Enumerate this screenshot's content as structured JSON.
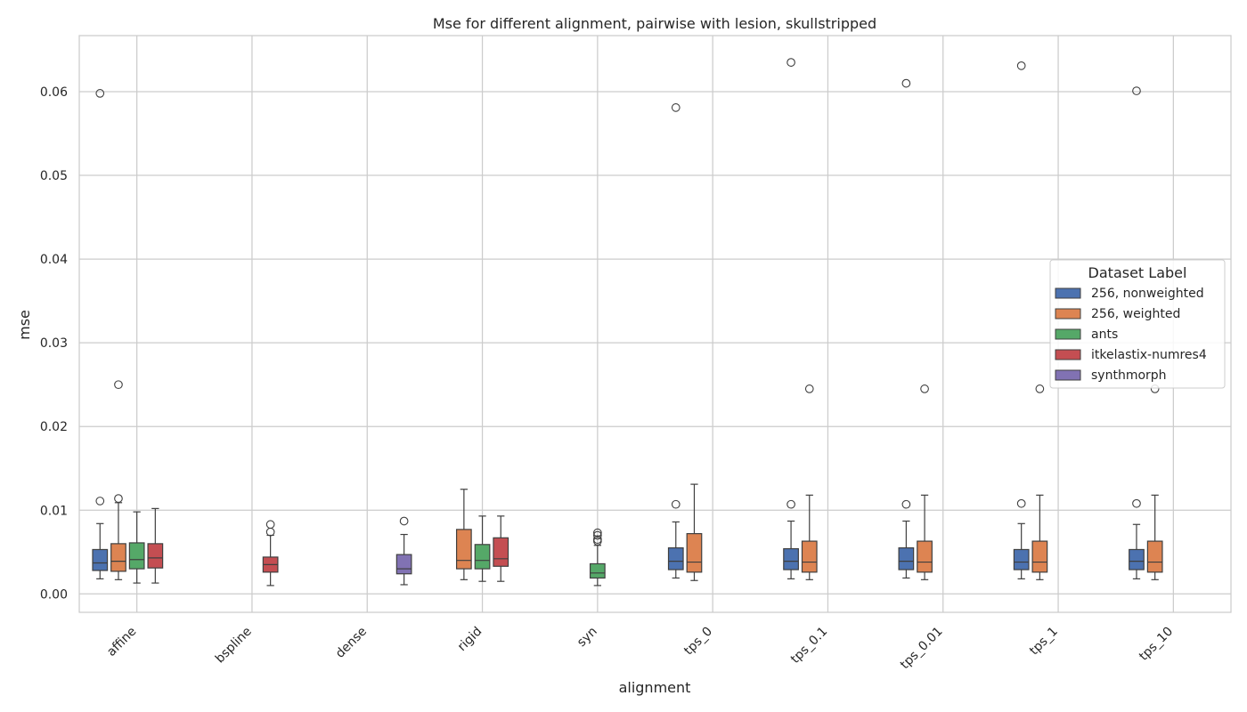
{
  "chart_data": {
    "type": "box",
    "title": "Mse for different alignment, pairwise with lesion, skullstripped",
    "xlabel": "alignment",
    "ylabel": "mse",
    "ylim": [
      -0.0022,
      0.0667
    ],
    "yticks": [
      "0.00",
      "0.01",
      "0.02",
      "0.03",
      "0.04",
      "0.05",
      "0.06"
    ],
    "categories": [
      "affine",
      "bspline",
      "dense",
      "rigid",
      "syn",
      "tps_0",
      "tps_0.1",
      "tps_0.01",
      "tps_1",
      "tps_10"
    ],
    "grid": true,
    "legend": {
      "title": "Dataset Label",
      "position": "right"
    },
    "series": [
      {
        "name": "256, nonweighted",
        "color": "#4c72b0",
        "boxes": [
          {
            "category": "affine",
            "whislo": 0.0018,
            "q1": 0.0028,
            "med": 0.0037,
            "q3": 0.0053,
            "whishi": 0.0084,
            "fliers": [
              0.0111,
              0.0598
            ]
          },
          {
            "category": "tps_0",
            "whislo": 0.0019,
            "q1": 0.0029,
            "med": 0.0039,
            "q3": 0.0055,
            "whishi": 0.0086,
            "fliers": [
              0.0107,
              0.0581
            ]
          },
          {
            "category": "tps_0.1",
            "whislo": 0.0018,
            "q1": 0.0029,
            "med": 0.0039,
            "q3": 0.0054,
            "whishi": 0.0087,
            "fliers": [
              0.0107,
              0.0635
            ]
          },
          {
            "category": "tps_0.01",
            "whislo": 0.0019,
            "q1": 0.0029,
            "med": 0.0039,
            "q3": 0.0055,
            "whishi": 0.0087,
            "fliers": [
              0.0107,
              0.061
            ]
          },
          {
            "category": "tps_1",
            "whislo": 0.0018,
            "q1": 0.0029,
            "med": 0.0038,
            "q3": 0.0053,
            "whishi": 0.0084,
            "fliers": [
              0.0108,
              0.0631
            ]
          },
          {
            "category": "tps_10",
            "whislo": 0.0018,
            "q1": 0.0029,
            "med": 0.0039,
            "q3": 0.0053,
            "whishi": 0.0083,
            "fliers": [
              0.0108,
              0.0601
            ]
          }
        ]
      },
      {
        "name": "256, weighted",
        "color": "#dd8452",
        "boxes": [
          {
            "category": "affine",
            "whislo": 0.0017,
            "q1": 0.0027,
            "med": 0.0039,
            "q3": 0.006,
            "whishi": 0.0109,
            "fliers": [
              0.0114,
              0.025
            ]
          },
          {
            "category": "rigid",
            "whislo": 0.0017,
            "q1": 0.003,
            "med": 0.004,
            "q3": 0.0077,
            "whishi": 0.0125,
            "fliers": []
          },
          {
            "category": "tps_0",
            "whislo": 0.0016,
            "q1": 0.0026,
            "med": 0.0038,
            "q3": 0.0072,
            "whishi": 0.0131,
            "fliers": []
          },
          {
            "category": "tps_0.1",
            "whislo": 0.0017,
            "q1": 0.0026,
            "med": 0.0038,
            "q3": 0.0063,
            "whishi": 0.0118,
            "fliers": [
              0.0245
            ]
          },
          {
            "category": "tps_0.01",
            "whislo": 0.0017,
            "q1": 0.0026,
            "med": 0.0038,
            "q3": 0.0063,
            "whishi": 0.0118,
            "fliers": [
              0.0245
            ]
          },
          {
            "category": "tps_1",
            "whislo": 0.0017,
            "q1": 0.0026,
            "med": 0.0038,
            "q3": 0.0063,
            "whishi": 0.0118,
            "fliers": [
              0.0245
            ]
          },
          {
            "category": "tps_10",
            "whislo": 0.0017,
            "q1": 0.0026,
            "med": 0.0038,
            "q3": 0.0063,
            "whishi": 0.0118,
            "fliers": [
              0.0245
            ]
          }
        ]
      },
      {
        "name": "ants",
        "color": "#55a868",
        "boxes": [
          {
            "category": "affine",
            "whislo": 0.0013,
            "q1": 0.003,
            "med": 0.0041,
            "q3": 0.0061,
            "whishi": 0.0098,
            "fliers": []
          },
          {
            "category": "rigid",
            "whislo": 0.0015,
            "q1": 0.003,
            "med": 0.004,
            "q3": 0.0059,
            "whishi": 0.0093,
            "fliers": []
          },
          {
            "category": "syn",
            "whislo": 0.001,
            "q1": 0.0019,
            "med": 0.0025,
            "q3": 0.0036,
            "whishi": 0.0058,
            "fliers": [
              0.0063,
              0.0065,
              0.007,
              0.0073
            ]
          }
        ]
      },
      {
        "name": "itkelastix-numres4",
        "color": "#c44e52",
        "boxes": [
          {
            "category": "affine",
            "whislo": 0.0013,
            "q1": 0.0031,
            "med": 0.0043,
            "q3": 0.006,
            "whishi": 0.0102,
            "fliers": []
          },
          {
            "category": "bspline",
            "whislo": 0.001,
            "q1": 0.0026,
            "med": 0.0035,
            "q3": 0.0044,
            "whishi": 0.007,
            "fliers": [
              0.0074,
              0.0083
            ]
          },
          {
            "category": "rigid",
            "whislo": 0.0015,
            "q1": 0.0033,
            "med": 0.0042,
            "q3": 0.0067,
            "whishi": 0.0093,
            "fliers": []
          }
        ]
      },
      {
        "name": "synthmorph",
        "color": "#8172b3",
        "boxes": [
          {
            "category": "dense",
            "whislo": 0.0011,
            "q1": 0.0024,
            "med": 0.003,
            "q3": 0.0047,
            "whishi": 0.0071,
            "fliers": [
              0.0087
            ]
          }
        ]
      }
    ]
  }
}
